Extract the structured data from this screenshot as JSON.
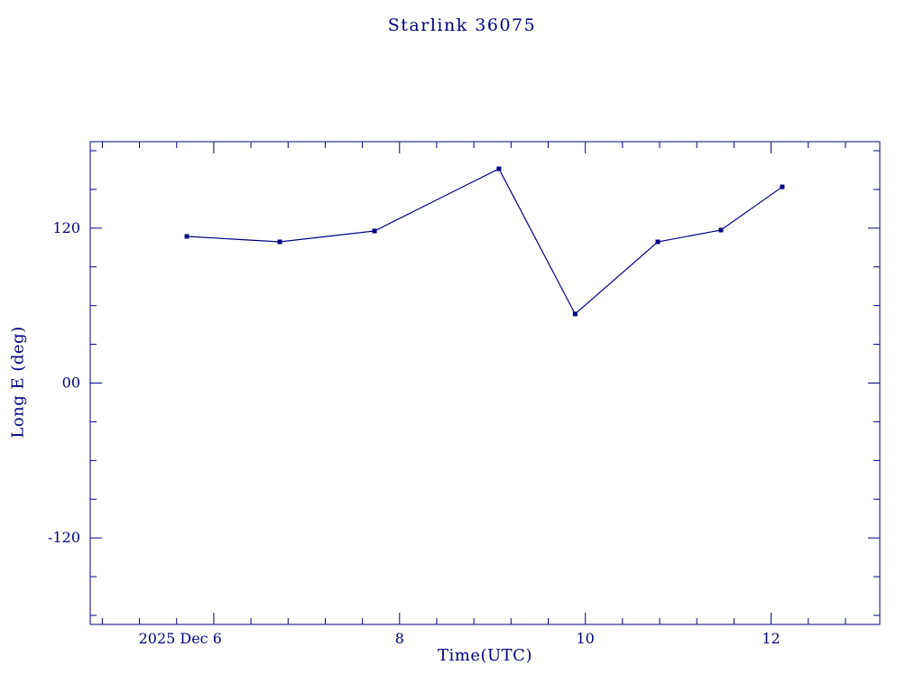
{
  "page": {
    "background": "#ffffff"
  },
  "chart_data": {
    "type": "line",
    "title": "Starlink 36075",
    "xlabel": "Time(UTC)",
    "ylabel": "Long E (deg)",
    "ink_color": "#000080",
    "marker": "filled-square",
    "legend": "none",
    "grid": "off",
    "xlim": [
      4.67,
      13.17
    ],
    "ylim": [
      -187,
      187
    ],
    "x_axis_unit": "day of month, December 2025 UTC",
    "x_ticks": [
      {
        "value": 6,
        "label": "2025 Dec 6",
        "align": "end"
      },
      {
        "value": 8,
        "label": "8"
      },
      {
        "value": 10,
        "label": "10"
      },
      {
        "value": 12,
        "label": "12"
      }
    ],
    "x_minor_step": 0.4,
    "y_ticks": [
      {
        "value": 120,
        "label": "120"
      },
      {
        "value": 0,
        "label": "00"
      },
      {
        "value": -120,
        "label": "-120"
      }
    ],
    "y_minor_step": 30,
    "series": [
      {
        "name": "Long E (deg)",
        "x": [
          5.71,
          6.71,
          7.73,
          9.07,
          9.89,
          10.78,
          11.46,
          12.12
        ],
        "y": [
          113.6,
          109.4,
          117.8,
          166.0,
          53.5,
          109.4,
          118.5,
          152.0
        ]
      }
    ]
  }
}
